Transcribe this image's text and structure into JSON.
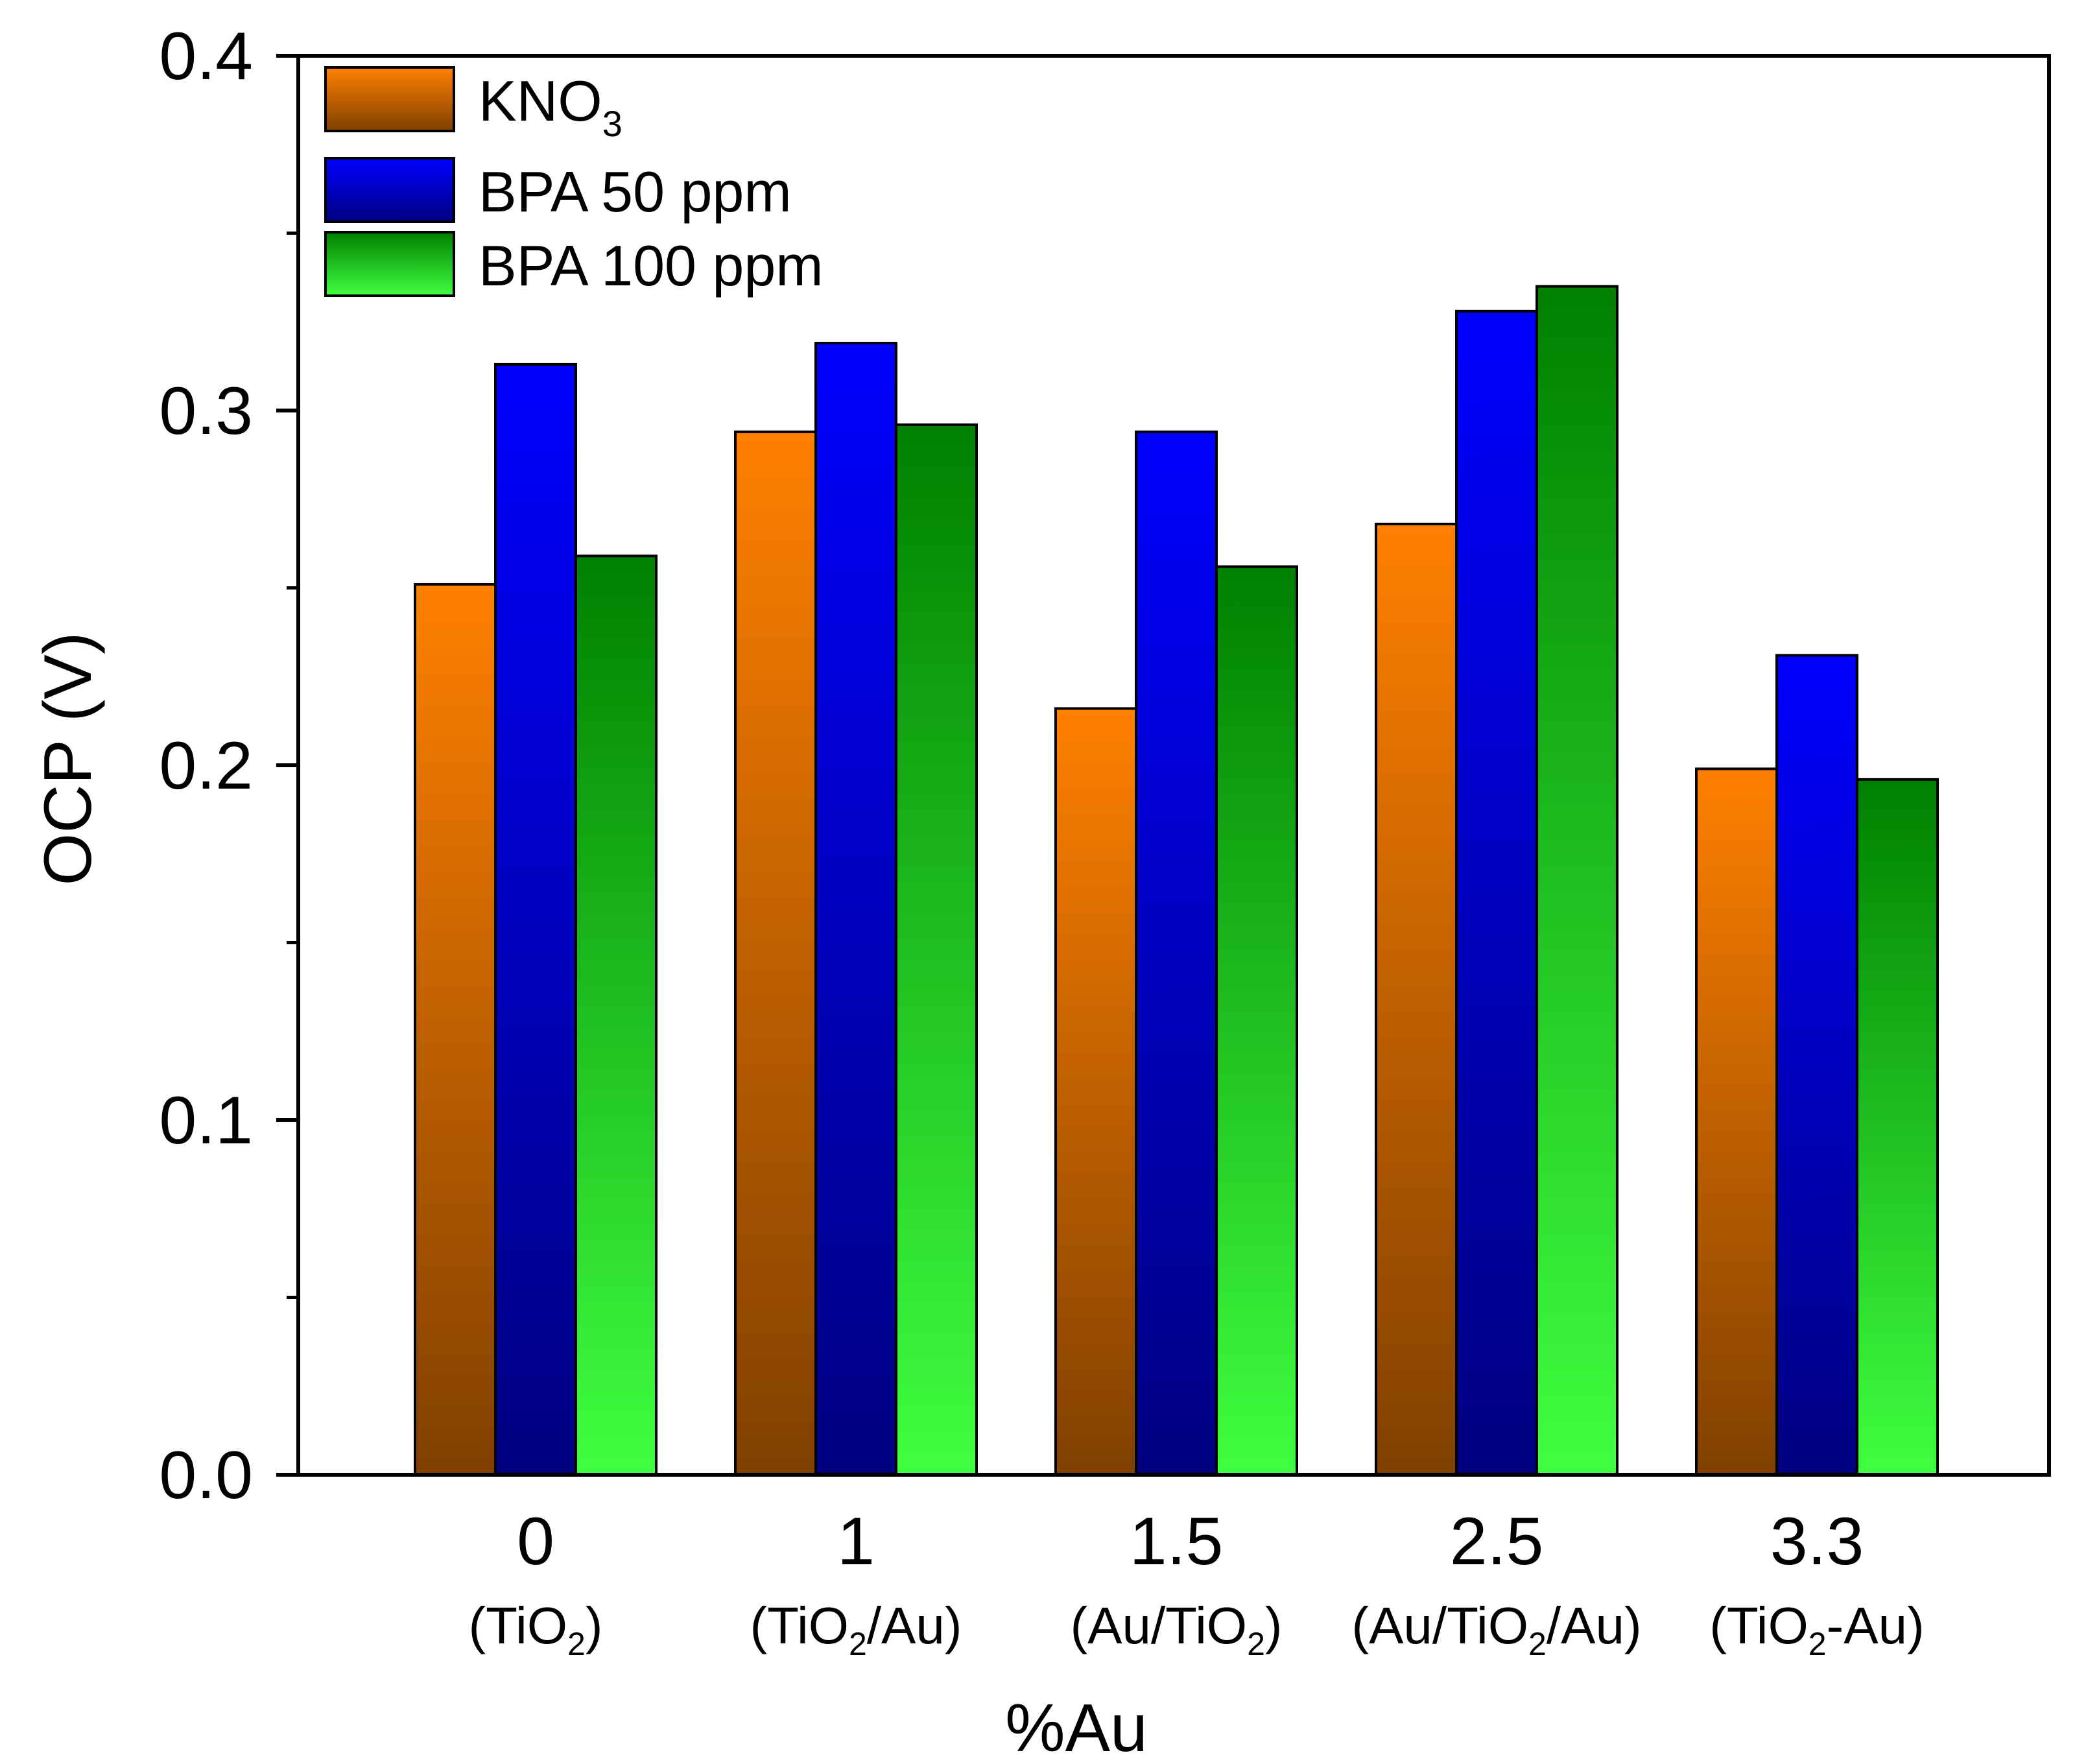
{
  "chart_data": {
    "type": "bar",
    "title": "",
    "xlabel": "%Au",
    "ylabel": "OCP (V)",
    "ylim": [
      0,
      0.4
    ],
    "yticks": [
      "0.0",
      "0.1",
      "0.2",
      "0.3",
      "0.4"
    ],
    "categories": [
      "0",
      "1",
      "1.5",
      "2.5",
      "3.3"
    ],
    "category_sublabels": [
      {
        "open": "(TiO",
        "sub": "2",
        "close": ")"
      },
      {
        "open": "(TiO",
        "sub": "2",
        "close": "/Au)"
      },
      {
        "open": "(Au/TiO",
        "sub": "2",
        "close": ")"
      },
      {
        "open": "(Au/TiO",
        "sub": "2",
        "close": "/Au)"
      },
      {
        "open": "(TiO",
        "sub": "2",
        "close": "-Au)"
      }
    ],
    "series": [
      {
        "name": "KNO3",
        "label_main": "KNO",
        "label_sub": "3",
        "values": [
          0.251,
          0.294,
          0.216,
          0.268,
          0.199
        ],
        "gradient": [
          "#ff8000",
          "#804000"
        ]
      },
      {
        "name": "BPA 50 ppm",
        "label_main": "BPA 50 ppm",
        "label_sub": "",
        "values": [
          0.313,
          0.319,
          0.294,
          0.328,
          0.231
        ],
        "gradient": [
          "#0000ff",
          "#000080"
        ]
      },
      {
        "name": "BPA 100 ppm",
        "label_main": "BPA 100 ppm",
        "label_sub": "",
        "values": [
          0.259,
          0.296,
          0.256,
          0.335,
          0.196
        ],
        "gradient": [
          "#008000",
          "#40ff40"
        ]
      }
    ],
    "legend_position": "top-left",
    "grid": false
  }
}
